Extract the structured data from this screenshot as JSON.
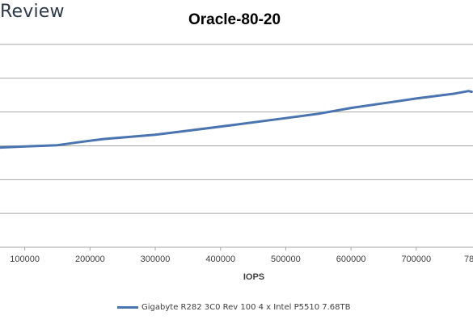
{
  "brand": {
    "logo_text": "Review"
  },
  "chart_data": {
    "type": "line",
    "title": "Oracle-80-20",
    "xlabel": "IOPS",
    "ylabel": "",
    "xlim": [
      62000,
      787000
    ],
    "ylim": [
      0,
      6
    ],
    "y_gridlines": [
      1,
      2,
      3,
      4,
      5,
      6
    ],
    "x_ticks": [
      100000,
      200000,
      300000,
      400000,
      500000,
      600000,
      700000
    ],
    "x_tick_labels": [
      "100000",
      "200000",
      "300000",
      "400000",
      "500000",
      "600000",
      "700000"
    ],
    "x_tick_label_cut": "78",
    "grid": true,
    "legend": "bottom",
    "series": [
      {
        "name": "Gigabyte R282 3C0 Rev 100 4 x Intel P5510 7.68TB",
        "color": "#4a74b0",
        "points": [
          [
            62000,
            2.95
          ],
          [
            100000,
            2.98
          ],
          [
            150000,
            3.02
          ],
          [
            180000,
            3.1
          ],
          [
            220000,
            3.2
          ],
          [
            300000,
            3.33
          ],
          [
            360000,
            3.47
          ],
          [
            420000,
            3.62
          ],
          [
            500000,
            3.82
          ],
          [
            550000,
            3.95
          ],
          [
            600000,
            4.12
          ],
          [
            650000,
            4.26
          ],
          [
            700000,
            4.4
          ],
          [
            760000,
            4.55
          ],
          [
            780000,
            4.62
          ],
          [
            785000,
            4.6
          ]
        ]
      }
    ]
  }
}
